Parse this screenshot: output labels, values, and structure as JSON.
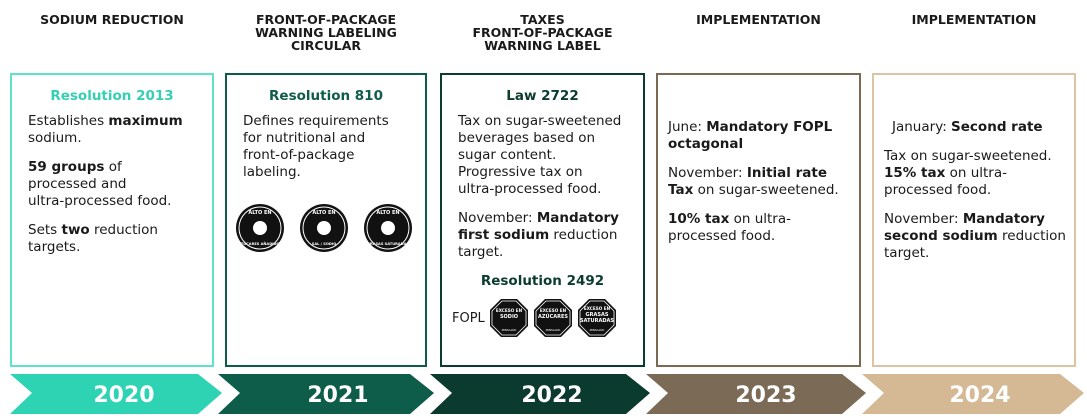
{
  "columns": [
    {
      "header": [
        "SODIUM REDUCTION"
      ],
      "title": "Resolution 2013",
      "year": "2020",
      "paragraphs": [
        [
          [
            {
              "text": "Establishes "
            },
            {
              "text": "maximum",
              "bold": true
            }
          ],
          [
            {
              "text": "sodium."
            }
          ]
        ],
        [
          [
            {
              "text": "59 groups",
              "bold": true
            },
            {
              "text": " of"
            }
          ],
          [
            {
              "text": "processed and"
            }
          ],
          [
            {
              "text": "ultra-processed food."
            }
          ]
        ],
        [
          [
            {
              "text": "Sets "
            },
            {
              "text": "two",
              "bold": true
            },
            {
              "text": " reduction"
            }
          ],
          [
            {
              "text": "targets."
            }
          ]
        ]
      ]
    },
    {
      "header": [
        "FRONT-OF-PACKAGE",
        "WARNING LABELING",
        "CIRCULAR"
      ],
      "title": "Resolution 810",
      "year": "2021",
      "paragraphs": [
        [
          [
            {
              "text": "Defines requirements"
            }
          ],
          [
            {
              "text": "for nutritional and"
            }
          ],
          [
            {
              "text": "front-of-package"
            }
          ],
          [
            {
              "text": "labeling."
            }
          ]
        ]
      ],
      "badges": [
        {
          "lines": [
            "ALTO EN",
            "AZÚCARES AÑADIDOS"
          ]
        },
        {
          "lines": [
            "ALTO EN",
            "SAL / SODIO"
          ]
        },
        {
          "lines": [
            "ALTO EN",
            "GRASAS SATURADAS"
          ]
        }
      ]
    },
    {
      "header": [
        "TAXES",
        "FRONT-OF-PACKAGE",
        "WARNING LABEL"
      ],
      "title": "Law 2722",
      "year": "2022",
      "paragraphs": [
        [
          [
            {
              "text": "Tax on sugar-sweetened"
            }
          ],
          [
            {
              "text": "beverages based on"
            }
          ],
          [
            {
              "text": "sugar content."
            }
          ],
          [
            {
              "text": "Progressive tax on"
            }
          ],
          [
            {
              "text": "ultra-processed food."
            }
          ]
        ],
        [
          [
            {
              "text": "November: "
            },
            {
              "text": "Mandatory",
              "bold": true
            }
          ],
          [
            {
              "text": "first sodium",
              "bold": true
            },
            {
              "text": " reduction"
            }
          ],
          [
            {
              "text": "target."
            }
          ]
        ]
      ],
      "subsection": {
        "title": "Resolution 2492",
        "label": "FOPL",
        "octagons": [
          {
            "lines": [
              "EXCESO EN",
              "SODIO"
            ],
            "footer": "MINSALUD"
          },
          {
            "lines": [
              "EXCESO EN",
              "AZÚCARES"
            ],
            "footer": "MINSALUD"
          },
          {
            "lines": [
              "EXCESO EN",
              "GRASAS",
              "SATURADAS"
            ],
            "footer": "MINSALUD"
          }
        ]
      }
    },
    {
      "header": [
        "IMPLEMENTATION"
      ],
      "year": "2023",
      "paragraphs": [
        [
          [
            {
              "text": "June: "
            },
            {
              "text": "Mandatory FOPL",
              "bold": true
            }
          ],
          [
            {
              "text": "octagonal",
              "bold": true
            }
          ]
        ],
        [
          [
            {
              "text": "November: "
            },
            {
              "text": "Initial rate",
              "bold": true
            }
          ],
          [
            {
              "text": "Tax",
              "bold": true
            },
            {
              "text": " on sugar-sweetened."
            }
          ]
        ],
        [
          [
            {
              "text": "10% tax",
              "bold": true
            },
            {
              "text": " on ultra-"
            }
          ],
          [
            {
              "text": "processed food."
            }
          ]
        ]
      ]
    },
    {
      "header": [
        "IMPLEMENTATION"
      ],
      "year": "2024",
      "paragraphs": [
        [
          [
            {
              "text": "January: "
            },
            {
              "text": "Second rate",
              "bold": true
            }
          ]
        ],
        [
          [
            {
              "text": "Tax on sugar-sweetened."
            }
          ],
          [
            {
              "text": "15% tax",
              "bold": true
            },
            {
              "text": " on ultra-"
            }
          ],
          [
            {
              "text": "processed food."
            }
          ]
        ],
        [
          [
            {
              "text": "November: "
            },
            {
              "text": "Mandatory",
              "bold": true
            }
          ],
          [
            {
              "text": "second sodium",
              "bold": true
            },
            {
              "text": " reduction"
            }
          ],
          [
            {
              "text": "target."
            }
          ]
        ]
      ]
    }
  ]
}
